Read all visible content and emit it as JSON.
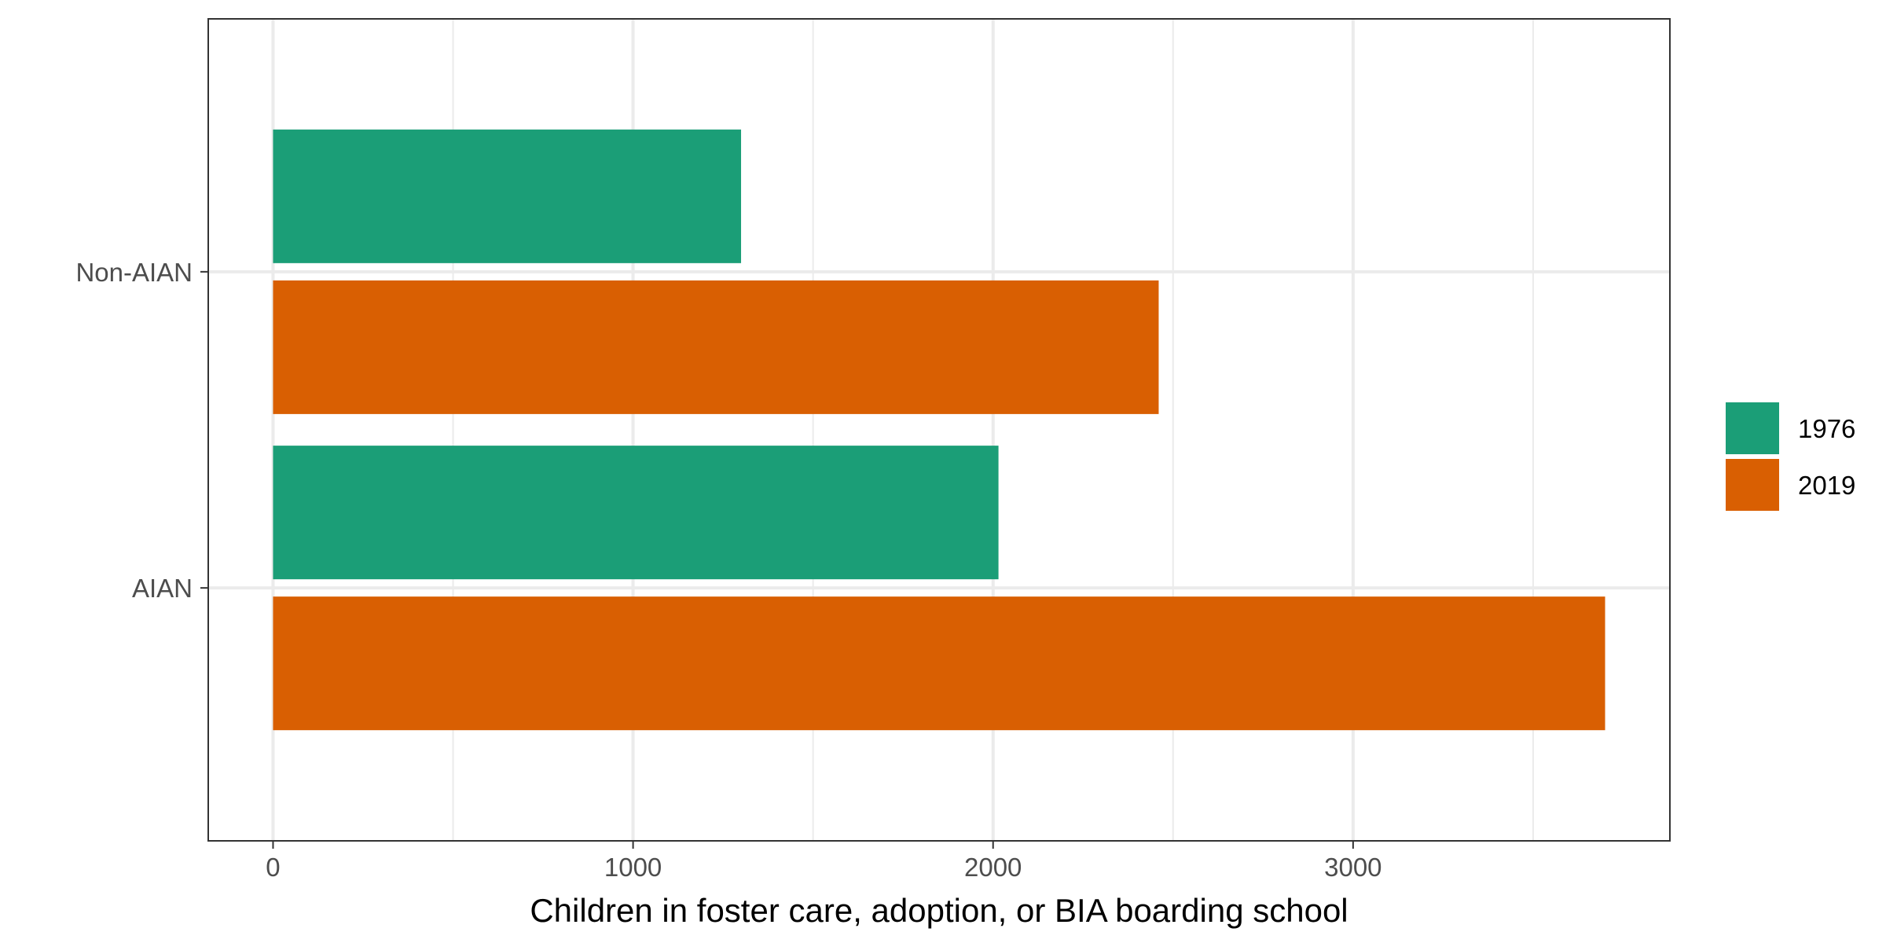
{
  "chart_data": {
    "type": "bar",
    "orientation": "horizontal",
    "categories": [
      "AIAN",
      "Non-AIAN"
    ],
    "series": [
      {
        "name": "1976",
        "values": [
          2015,
          1300
        ],
        "color": "#1b9e77"
      },
      {
        "name": "2019",
        "values": [
          3700,
          2460
        ],
        "color": "#d95f02"
      }
    ],
    "xlabel": "Children in foster care, adoption, or BIA boarding school",
    "ylabel": "",
    "xlim": [
      -180,
      3880
    ],
    "x_ticks": [
      0,
      1000,
      2000,
      3000
    ],
    "grid": true,
    "legend_position": "right"
  }
}
